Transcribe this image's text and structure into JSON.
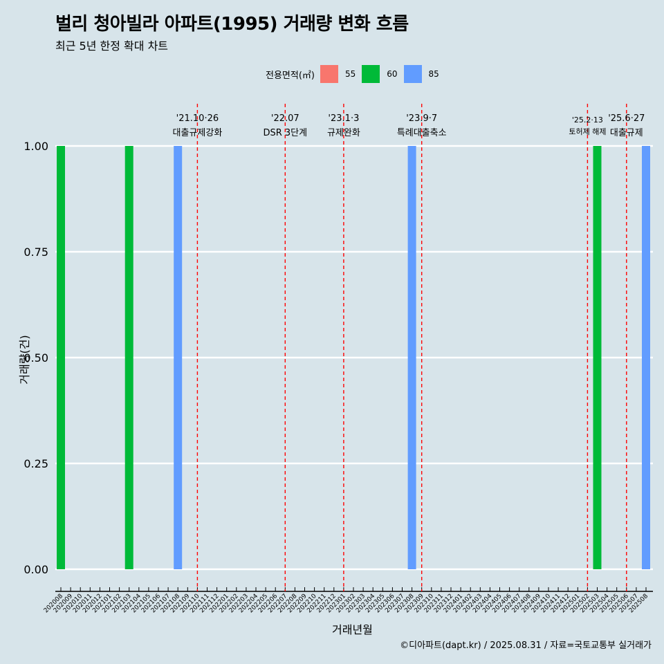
{
  "title": "벌리 청아빌라 아파트(1995) 거래량 변화 흐름",
  "subtitle": "최근 5년 한정 확대 차트",
  "caption": "©디아파트(dapt.kr) / 2025.08.31 / 자료=국토교통부 실거래가",
  "legend": {
    "title": "전용면적(㎡)",
    "items": [
      {
        "label": "55",
        "color": "#f8766d"
      },
      {
        "label": "60",
        "color": "#00ba38"
      },
      {
        "label": "85",
        "color": "#619cff"
      }
    ]
  },
  "chart_data": {
    "type": "bar",
    "xlabel": "거래년월",
    "ylabel": "거래량(건)",
    "ylim": [
      0,
      1
    ],
    "y_ticks": [
      "0.00",
      "0.25",
      "0.50",
      "0.75",
      "1.00"
    ],
    "grid": true,
    "legend_position": "top",
    "categories": [
      "202008",
      "202009",
      "202010",
      "202011",
      "202012",
      "202101",
      "202102",
      "202103",
      "202104",
      "202105",
      "202106",
      "202107",
      "202108",
      "202109",
      "202110",
      "202111",
      "202112",
      "202201",
      "202202",
      "202203",
      "202204",
      "202205",
      "202206",
      "202207",
      "202208",
      "202209",
      "202210",
      "202211",
      "202212",
      "202301",
      "202302",
      "202303",
      "202304",
      "202305",
      "202306",
      "202307",
      "202308",
      "202309",
      "202310",
      "202311",
      "202312",
      "202401",
      "202402",
      "202403",
      "202404",
      "202405",
      "202406",
      "202407",
      "202408",
      "202409",
      "202410",
      "202411",
      "202412",
      "202501",
      "202502",
      "202503",
      "202504",
      "202505",
      "202506",
      "202507",
      "202508"
    ],
    "bars": [
      {
        "x": "202008",
        "series": "60",
        "value": 1
      },
      {
        "x": "202103",
        "series": "60",
        "value": 1
      },
      {
        "x": "202108",
        "series": "85",
        "value": 1
      },
      {
        "x": "202308",
        "series": "85",
        "value": 1
      },
      {
        "x": "202503",
        "series": "60",
        "value": 1
      },
      {
        "x": "202508",
        "series": "85",
        "value": 1
      }
    ],
    "annotations": [
      {
        "date": "'21.10·26",
        "label": "대출규제강화",
        "x": "202110"
      },
      {
        "date": "'22.07",
        "label": "DSR 3단계",
        "x": "202207"
      },
      {
        "date": "'23.1·3",
        "label": "규제완화",
        "x": "202301"
      },
      {
        "date": "'23.9·7",
        "label": "특례대출축소",
        "x": "202309"
      },
      {
        "date": "'25.2·13",
        "label": "토허제 해제",
        "x": "202502"
      },
      {
        "date": "'25.6·27",
        "label": "대출규제",
        "x": "202506"
      }
    ]
  }
}
